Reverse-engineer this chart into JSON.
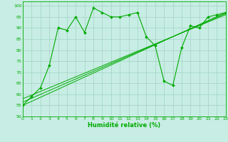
{
  "xlabel": "Humidité relative (%)",
  "xlim": [
    0,
    23
  ],
  "ylim": [
    50,
    102
  ],
  "yticks": [
    50,
    55,
    60,
    65,
    70,
    75,
    80,
    85,
    90,
    95,
    100
  ],
  "xticks": [
    0,
    1,
    2,
    3,
    4,
    5,
    6,
    7,
    8,
    9,
    10,
    11,
    12,
    13,
    14,
    15,
    16,
    17,
    18,
    19,
    20,
    21,
    22,
    23
  ],
  "bg_color": "#c8ede4",
  "grid_color": "#a0d4c4",
  "line_color": "#00aa00",
  "jagged": [
    55,
    59,
    63,
    73,
    90,
    89,
    95,
    88,
    99,
    97,
    95,
    95,
    96,
    97,
    86,
    82,
    66,
    64,
    81,
    91,
    90,
    95,
    96,
    97
  ],
  "linear1": [
    55.0,
    97.0
  ],
  "linear2": [
    56.5,
    96.5
  ],
  "linear3": [
    58.0,
    96.0
  ]
}
